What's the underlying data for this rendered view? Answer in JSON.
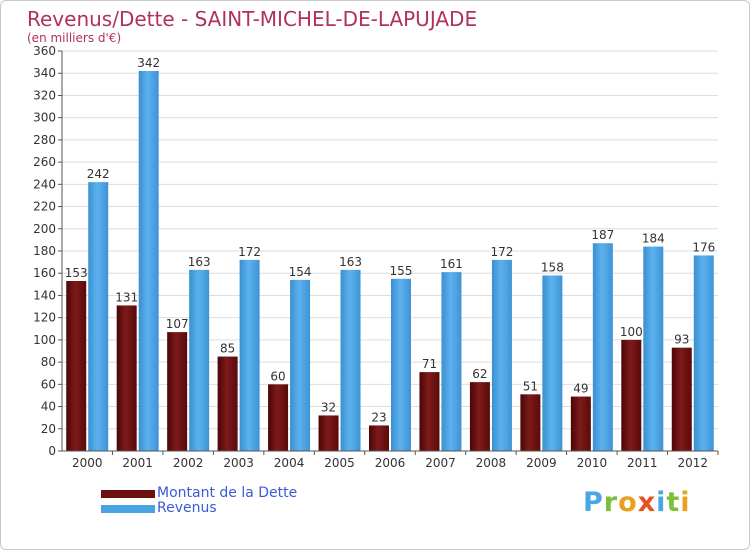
{
  "title": "Revenus/Dette - SAINT-MICHEL-DE-LAPUJADE",
  "subtitle": "(en milliers d'€)",
  "logo": {
    "letters": [
      {
        "char": "P",
        "color": "#4aa6e0"
      },
      {
        "char": "r",
        "color": "#7cbf3a"
      },
      {
        "char": "o",
        "color": "#e8a020"
      },
      {
        "char": "x",
        "color": "#e85020"
      },
      {
        "char": "i",
        "color": "#4aa6e0"
      },
      {
        "char": "t",
        "color": "#7cbf3a"
      },
      {
        "char": "i",
        "color": "#e8a020"
      }
    ]
  },
  "chart_data": {
    "type": "bar",
    "categories": [
      "2000",
      "2001",
      "2002",
      "2003",
      "2004",
      "2005",
      "2006",
      "2007",
      "2008",
      "2009",
      "2010",
      "2011",
      "2012"
    ],
    "series": [
      {
        "name": "Montant de la Dette",
        "color": "#6b0f0f",
        "values": [
          153,
          131,
          107,
          85,
          60,
          32,
          23,
          71,
          62,
          51,
          49,
          100,
          93
        ]
      },
      {
        "name": "Revenus",
        "color": "#4aa3e3",
        "values": [
          242,
          342,
          163,
          172,
          154,
          163,
          155,
          161,
          172,
          158,
          187,
          184,
          176
        ]
      }
    ],
    "ylim": [
      0,
      360
    ],
    "yticks": [
      0,
      20,
      40,
      60,
      80,
      100,
      120,
      140,
      160,
      180,
      200,
      220,
      240,
      260,
      280,
      300,
      320,
      340,
      360
    ],
    "grid": true,
    "legend_position": "bottom-left"
  }
}
